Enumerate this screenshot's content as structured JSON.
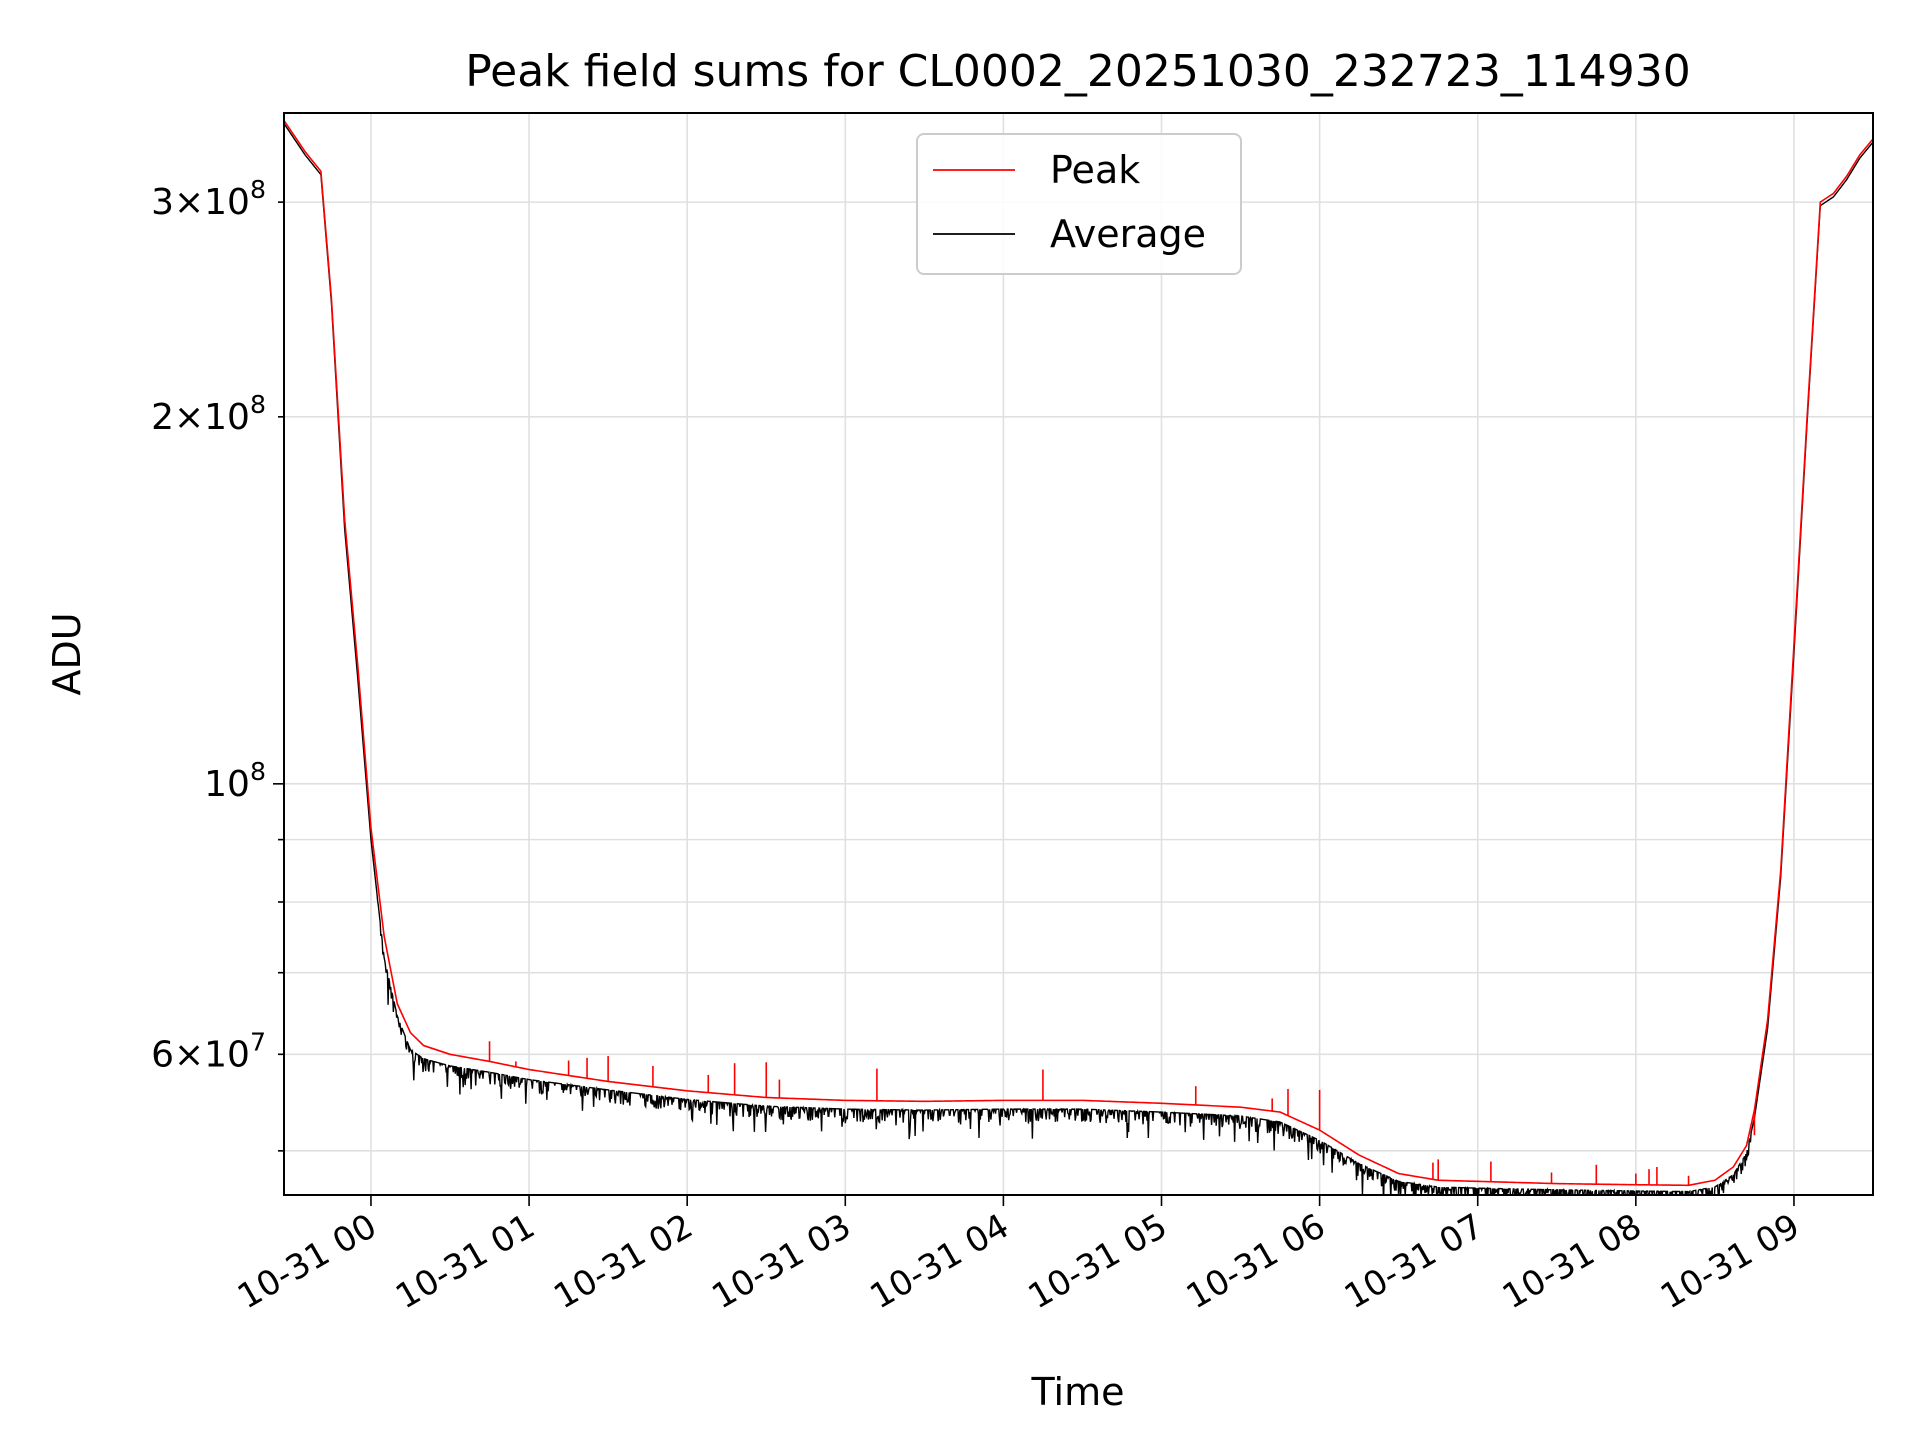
{
  "chart_data": {
    "type": "line",
    "title": "Peak field sums for CL0002_20251030_232723_114930",
    "xlabel": "Time",
    "ylabel": "ADU",
    "yscale": "log",
    "ylim": [
      46000000,
      355000000
    ],
    "xlim": [
      "10-30 23:27",
      "10-31 09:30"
    ],
    "grid": true,
    "legend": "upper center",
    "x_ticks": [
      "10-31 00",
      "10-31 01",
      "10-31 02",
      "10-31 03",
      "10-31 04",
      "10-31 05",
      "10-31 06",
      "10-31 07",
      "10-31 08",
      "10-31 09"
    ],
    "y_ticks_major": [
      {
        "value": 100000000,
        "mantissa": "",
        "base": "10",
        "exp": "8"
      }
    ],
    "y_ticks_labeled_minor": [
      {
        "value": 60000000,
        "mantissa": "6",
        "base": "10",
        "exp": "7"
      },
      {
        "value": 200000000,
        "mantissa": "2",
        "base": "10",
        "exp": "8"
      },
      {
        "value": 300000000,
        "mantissa": "3",
        "base": "10",
        "exp": "8"
      }
    ],
    "y_ticks_minor_unlabeled": [
      50000000,
      70000000,
      80000000,
      90000000
    ],
    "series": [
      {
        "name": "Peak",
        "color": "#ff0000",
        "x": [
          "10-30 23:27",
          "10-30 23:35",
          "10-30 23:41",
          "10-30 23:45",
          "10-30 23:50",
          "10-30 23:55",
          "10-31 00:00",
          "10-31 00:05",
          "10-31 00:10",
          "10-31 00:15",
          "10-31 00:20",
          "10-31 00:30",
          "10-31 00:45",
          "10-31 01:00",
          "10-31 01:30",
          "10-31 02:00",
          "10-31 02:30",
          "10-31 03:00",
          "10-31 03:30",
          "10-31 04:00",
          "10-31 04:30",
          "10-31 05:00",
          "10-31 05:30",
          "10-31 05:45",
          "10-31 06:00",
          "10-31 06:15",
          "10-31 06:30",
          "10-31 06:45",
          "10-31 07:00",
          "10-31 07:30",
          "10-31 08:00",
          "10-31 08:20",
          "10-31 08:30",
          "10-31 08:37",
          "10-31 08:42",
          "10-31 08:45",
          "10-31 08:50",
          "10-31 08:55",
          "10-31 09:00",
          "10-31 09:05",
          "10-31 09:10",
          "10-31 09:15",
          "10-31 09:20",
          "10-31 09:25",
          "10-31 09:30"
        ],
        "y": [
          350000000,
          330000000,
          318000000,
          250000000,
          165000000,
          125000000,
          92000000,
          75000000,
          66000000,
          62500000,
          61000000,
          60000000,
          59200000,
          58300000,
          57000000,
          56000000,
          55300000,
          55000000,
          54900000,
          55000000,
          55000000,
          54700000,
          54300000,
          53800000,
          52000000,
          49600000,
          47900000,
          47300000,
          47200000,
          47000000,
          46900000,
          46850000,
          47300000,
          48500000,
          50500000,
          54000000,
          64000000,
          85000000,
          130000000,
          200000000,
          300000000,
          305000000,
          315000000,
          328000000,
          338000000
        ],
        "spikes": [
          {
            "x": "10-31 00:45",
            "y": 61500000
          },
          {
            "x": "10-31 00:55",
            "y": 59200000
          },
          {
            "x": "10-31 01:15",
            "y": 59300000
          },
          {
            "x": "10-31 01:22",
            "y": 59600000
          },
          {
            "x": "10-31 01:30",
            "y": 59800000
          },
          {
            "x": "10-31 01:47",
            "y": 58700000
          },
          {
            "x": "10-31 02:08",
            "y": 57700000
          },
          {
            "x": "10-31 02:18",
            "y": 59000000
          },
          {
            "x": "10-31 02:30",
            "y": 59100000
          },
          {
            "x": "10-31 02:35",
            "y": 57200000
          },
          {
            "x": "10-31 03:12",
            "y": 58400000
          },
          {
            "x": "10-31 04:15",
            "y": 58300000
          },
          {
            "x": "10-31 05:13",
            "y": 56500000
          },
          {
            "x": "10-31 05:42",
            "y": 55200000
          },
          {
            "x": "10-31 05:48",
            "y": 56200000
          },
          {
            "x": "10-31 06:00",
            "y": 56100000
          },
          {
            "x": "10-31 06:43",
            "y": 48900000
          },
          {
            "x": "10-31 06:45",
            "y": 49200000
          },
          {
            "x": "10-31 07:05",
            "y": 49000000
          },
          {
            "x": "10-31 07:28",
            "y": 48000000
          },
          {
            "x": "10-31 07:45",
            "y": 48700000
          },
          {
            "x": "10-31 08:00",
            "y": 47900000
          },
          {
            "x": "10-31 08:05",
            "y": 48300000
          },
          {
            "x": "10-31 08:08",
            "y": 48500000
          },
          {
            "x": "10-31 08:20",
            "y": 47700000
          },
          {
            "x": "10-31 08:45",
            "y": 51500000
          }
        ]
      },
      {
        "name": "Average",
        "color": "#000000",
        "x": [
          "10-30 23:27",
          "10-30 23:35",
          "10-30 23:41",
          "10-30 23:45",
          "10-30 23:50",
          "10-30 23:55",
          "10-31 00:00",
          "10-31 00:05",
          "10-31 00:10",
          "10-31 00:15",
          "10-31 00:20",
          "10-31 00:30",
          "10-31 00:45",
          "10-31 01:00",
          "10-31 01:30",
          "10-31 02:00",
          "10-31 02:30",
          "10-31 03:00",
          "10-31 03:30",
          "10-31 04:00",
          "10-31 04:30",
          "10-31 05:00",
          "10-31 05:30",
          "10-31 05:45",
          "10-31 06:00",
          "10-31 06:15",
          "10-31 06:30",
          "10-31 06:45",
          "10-31 07:00",
          "10-31 07:30",
          "10-31 08:00",
          "10-31 08:20",
          "10-31 08:30",
          "10-31 08:37",
          "10-31 08:42",
          "10-31 08:45",
          "10-31 08:50",
          "10-31 08:55",
          "10-31 09:00",
          "10-31 09:05",
          "10-31 09:10",
          "10-31 09:15",
          "10-31 09:20",
          "10-31 09:25",
          "10-31 09:30"
        ],
        "y": [
          348000000,
          328000000,
          316000000,
          248000000,
          162000000,
          122000000,
          90000000,
          72000000,
          64500000,
          60500000,
          59500000,
          58700000,
          58000000,
          57200000,
          56100000,
          55100000,
          54400000,
          54100000,
          54000000,
          54100000,
          54100000,
          53800000,
          53400000,
          52800000,
          51000000,
          48800000,
          47200000,
          46700000,
          46600000,
          46450000,
          46350000,
          46300000,
          46700000,
          47800000,
          49800000,
          53200000,
          63000000,
          84000000,
          128000000,
          198000000,
          298000000,
          303000000,
          313000000,
          326000000,
          336000000
        ],
        "noise_below": 0.035
      }
    ]
  }
}
